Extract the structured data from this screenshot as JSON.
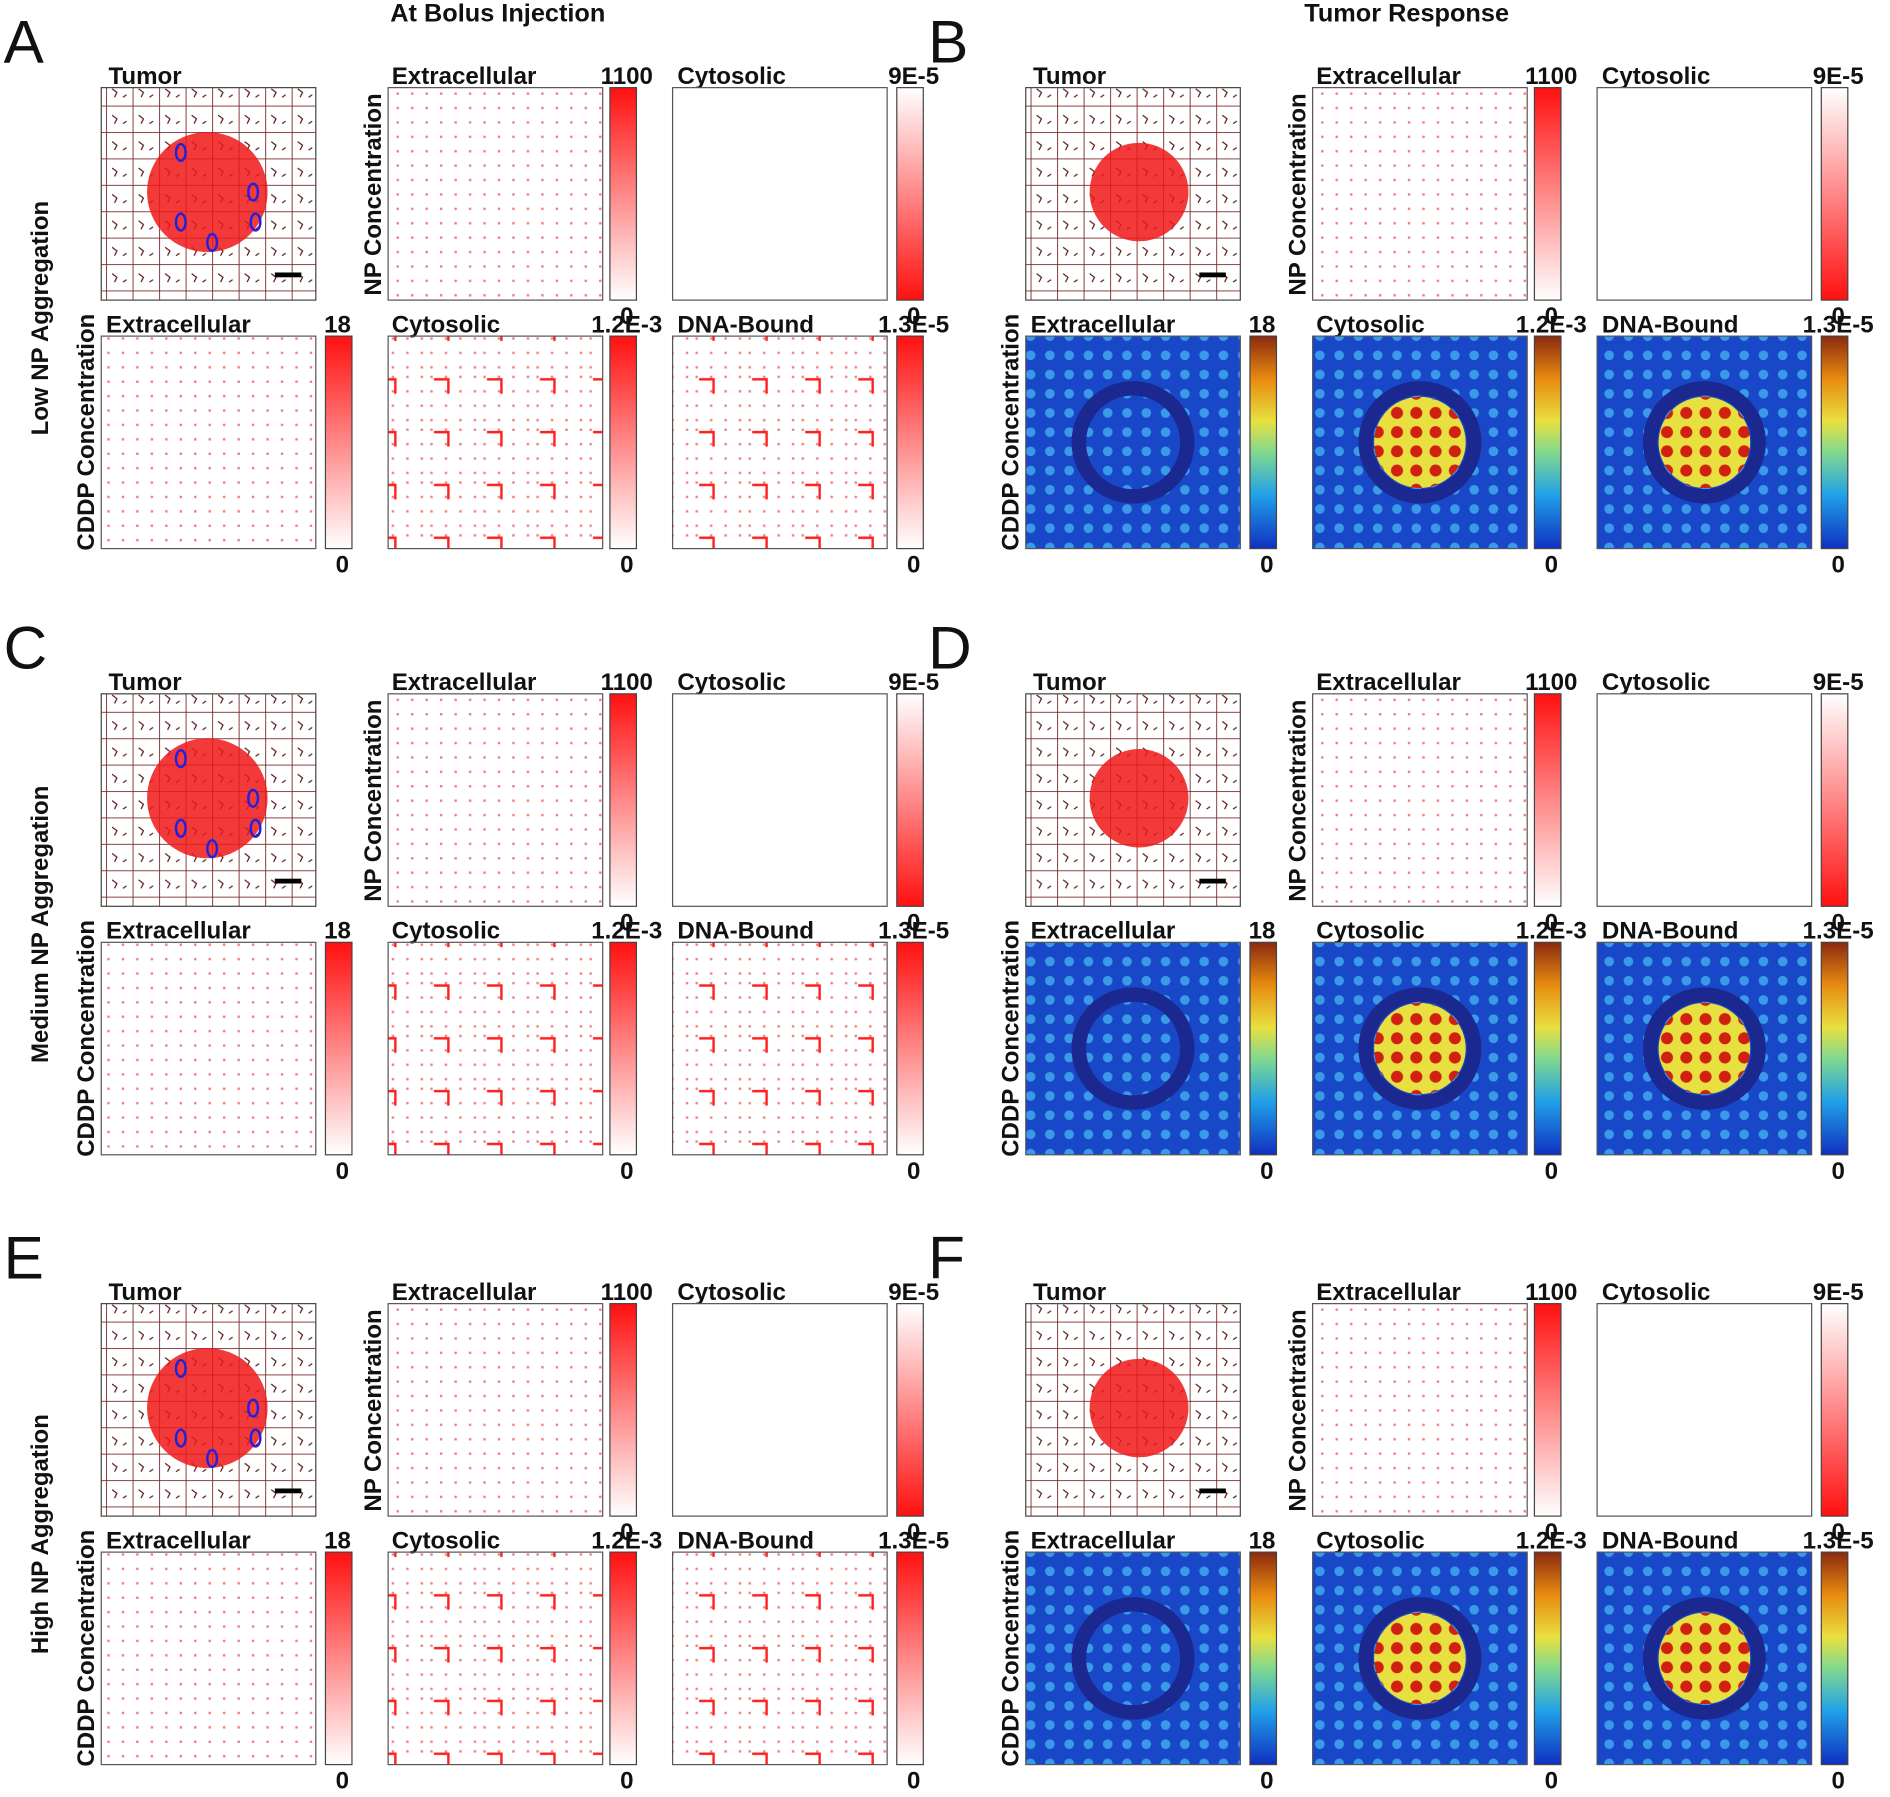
{
  "columns": [
    "At Bolus Injection",
    "Tumor Response"
  ],
  "rows": [
    "Low NP Aggregation",
    "Medium NP Aggregation",
    "High NP Aggregation"
  ],
  "panels": [
    {
      "letter": "A",
      "tumor": "Tumor",
      "np_label": "NP Concentration",
      "cddp_label": "CDDP Concentration",
      "plots": [
        {
          "title": "Extracellular",
          "max": "1100",
          "min": "0"
        },
        {
          "title": "Cytosolic",
          "max": "9E-5",
          "min": "0"
        },
        {
          "title": "Extracellular",
          "max": "18",
          "min": "0"
        },
        {
          "title": "Cytosolic",
          "max": "1.2E-3",
          "min": "0"
        },
        {
          "title": "DNA-Bound",
          "max": "1.3E-5",
          "min": "0"
        }
      ]
    },
    {
      "letter": "B",
      "tumor": "Tumor",
      "np_label": "NP Concentration",
      "cddp_label": "CDDP Concentration",
      "plots": [
        {
          "title": "Extracellular",
          "max": "1100",
          "min": "0"
        },
        {
          "title": "Cytosolic",
          "max": "9E-5",
          "min": "0"
        },
        {
          "title": "Extracellular",
          "max": "18",
          "min": "0"
        },
        {
          "title": "Cytosolic",
          "max": "1.2E-3",
          "min": "0"
        },
        {
          "title": "DNA-Bound",
          "max": "1.3E-5",
          "min": "0"
        }
      ]
    },
    {
      "letter": "C",
      "tumor": "Tumor",
      "np_label": "NP Concentration",
      "cddp_label": "CDDP Concentration",
      "plots": [
        {
          "title": "Extracellular",
          "max": "1100",
          "min": "0"
        },
        {
          "title": "Cytosolic",
          "max": "9E-5",
          "min": "0"
        },
        {
          "title": "Extracellular",
          "max": "18",
          "min": "0"
        },
        {
          "title": "Cytosolic",
          "max": "1.2E-3",
          "min": "0"
        },
        {
          "title": "DNA-Bound",
          "max": "1.3E-5",
          "min": "0"
        }
      ]
    },
    {
      "letter": "D",
      "tumor": "Tumor",
      "np_label": "NP Concentration",
      "cddp_label": "CDDP Concentration",
      "plots": [
        {
          "title": "Extracellular",
          "max": "1100",
          "min": "0"
        },
        {
          "title": "Cytosolic",
          "max": "9E-5",
          "min": "0"
        },
        {
          "title": "Extracellular",
          "max": "18",
          "min": "0"
        },
        {
          "title": "Cytosolic",
          "max": "1.2E-3",
          "min": "0"
        },
        {
          "title": "DNA-Bound",
          "max": "1.3E-5",
          "min": "0"
        }
      ]
    },
    {
      "letter": "E",
      "tumor": "Tumor",
      "np_label": "NP Concentration",
      "cddp_label": "CDDP Concentration",
      "plots": [
        {
          "title": "Extracellular",
          "max": "1100",
          "min": "0"
        },
        {
          "title": "Cytosolic",
          "max": "9E-5",
          "min": "0"
        },
        {
          "title": "Extracellular",
          "max": "18",
          "min": "0"
        },
        {
          "title": "Cytosolic",
          "max": "1.2E-3",
          "min": "0"
        },
        {
          "title": "DNA-Bound",
          "max": "1.3E-5",
          "min": "0"
        }
      ]
    },
    {
      "letter": "F",
      "tumor": "Tumor",
      "np_label": "NP Concentration",
      "cddp_label": "CDDP Concentration",
      "plots": [
        {
          "title": "Extracellular",
          "max": "1100",
          "min": "0"
        },
        {
          "title": "Cytosolic",
          "max": "9E-5",
          "min": "0"
        },
        {
          "title": "Extracellular",
          "max": "18",
          "min": "0"
        },
        {
          "title": "Cytosolic",
          "max": "1.2E-3",
          "min": "0"
        },
        {
          "title": "DNA-Bound",
          "max": "1.3E-5",
          "min": "0"
        }
      ]
    }
  ]
}
